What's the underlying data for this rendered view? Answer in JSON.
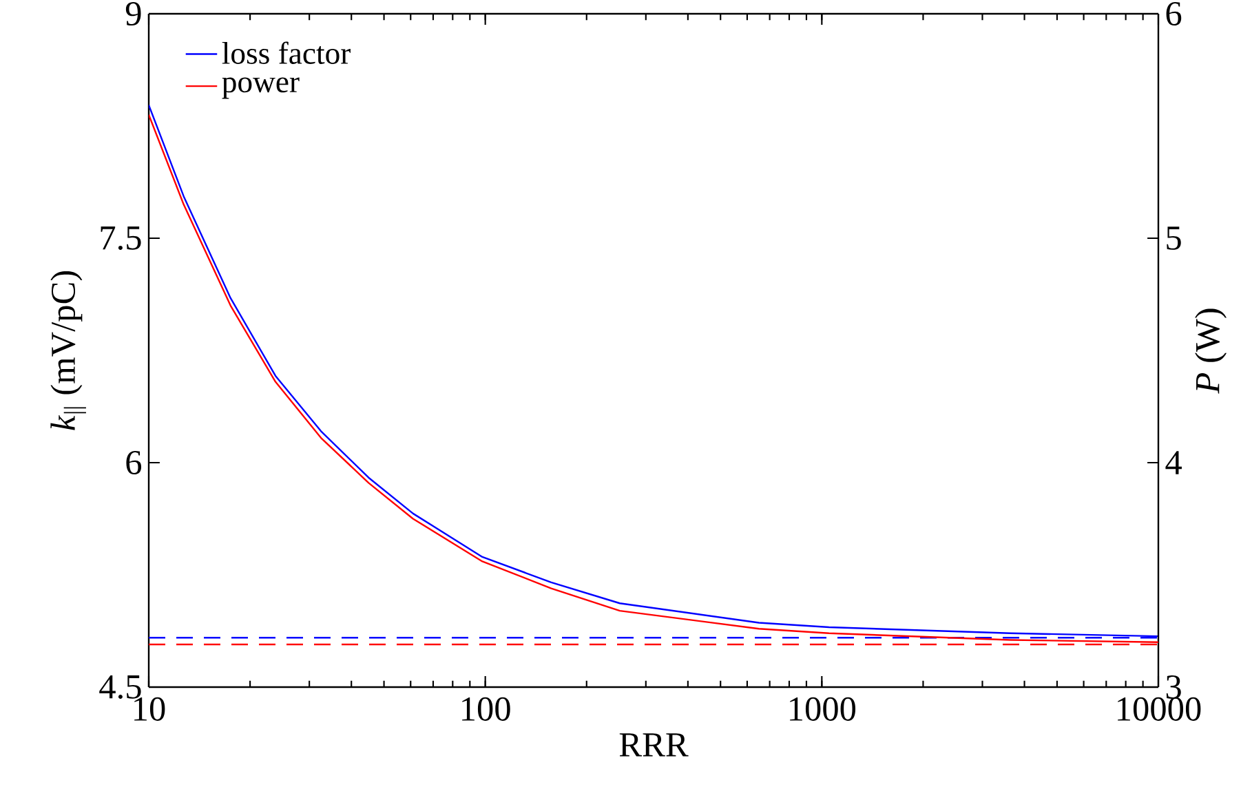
{
  "chart_data": {
    "type": "line",
    "xlabel": "RRR",
    "ylabel": "*k*$_{||}$ (mV/pC)",
    "y2label": "*P* (W)",
    "log": "x",
    "legend": "top left",
    "xlim": [
      10,
      10000
    ],
    "xticks": [
      10,
      100,
      1000,
      10000
    ],
    "ylim": [
      4.5,
      9
    ],
    "yticks": [
      4.5,
      6,
      7.5,
      9
    ],
    "y2lim": [
      3,
      6
    ],
    "y2ticks": [
      3,
      4,
      5,
      6
    ],
    "series": [
      {
        "name": "loss factor",
        "color": "#0000ff",
        "axis": "y",
        "x": [
          10,
          12.7,
          17.5,
          23.8,
          32.5,
          45,
          61,
          98,
          157,
          251,
          650,
          1050,
          3630,
          10000
        ],
        "values": [
          8.39,
          7.78,
          7.1,
          6.58,
          6.21,
          5.9,
          5.66,
          5.37,
          5.2,
          5.06,
          4.93,
          4.9,
          4.86,
          4.84
        ]
      },
      {
        "name": "power",
        "color": "#ff0000",
        "axis": "y2",
        "x": [
          10,
          12.7,
          17.5,
          23.8,
          32.5,
          45,
          61,
          98,
          157,
          251,
          650,
          1050,
          3630,
          10000
        ],
        "values": [
          5.55,
          5.15,
          4.7,
          4.36,
          4.11,
          3.91,
          3.75,
          3.56,
          3.44,
          3.34,
          3.26,
          3.24,
          3.21,
          3.2
        ]
      }
    ],
    "ref_lines": [
      {
        "axis": "y",
        "value": 4.83,
        "color": "#0000ff",
        "line_style": "dashed"
      },
      {
        "axis": "y2",
        "value": 3.19,
        "color": "#ff0000",
        "line_style": "dashed"
      }
    ]
  }
}
